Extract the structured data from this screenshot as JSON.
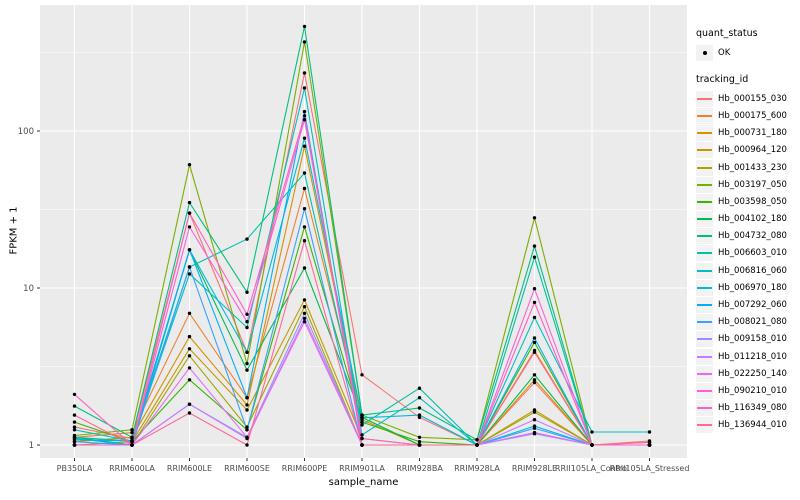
{
  "chart_data": {
    "type": "line",
    "title": "",
    "xlabel": "sample_name",
    "ylabel": "FPKM + 1",
    "y_scale": "log10",
    "y_ticks": [
      1,
      10,
      100
    ],
    "ylim": [
      0.93,
      700
    ],
    "grid": true,
    "legend_position": "right",
    "categories": [
      "PB350LA",
      "RRIM600LA",
      "RRIM600LE",
      "RRIM600SE",
      "RRIM600PE",
      "RRIM901LA",
      "RRIM928BA",
      "RRIM928LA",
      "RRIM928LE",
      "RRII105LA_Control",
      "RRII105LA_Stressed"
    ],
    "series": [
      {
        "name": "Hb_000155_030",
        "color": "#F8766D",
        "values": [
          1.3,
          1.1,
          30,
          3.9,
          234,
          2.8,
          1.5,
          1.0,
          2.5,
          1.0,
          1.06
        ]
      },
      {
        "name": "Hb_000175_600",
        "color": "#EA8331",
        "values": [
          1.12,
          1.2,
          6.9,
          2.0,
          43,
          1.5,
          1.0,
          1.0,
          4.0,
          1.0,
          1.0
        ]
      },
      {
        "name": "Hb_000731_180",
        "color": "#D89000",
        "values": [
          1.05,
          1.12,
          4.9,
          1.8,
          80,
          1.45,
          1.0,
          1.0,
          2.6,
          1.0,
          1.0
        ]
      },
      {
        "name": "Hb_000964_120",
        "color": "#C09B00",
        "values": [
          1.0,
          1.05,
          4.1,
          1.67,
          8.4,
          1.1,
          1.0,
          1.0,
          1.67,
          1.0,
          1.0
        ]
      },
      {
        "name": "Hb_001433_230",
        "color": "#A3A500",
        "values": [
          1.0,
          1.0,
          3.7,
          1.3,
          7.6,
          1.0,
          1.0,
          1.0,
          1.62,
          1.0,
          1.0
        ]
      },
      {
        "name": "Hb_003197_050",
        "color": "#7CAE00",
        "values": [
          1.15,
          1.25,
          61,
          3.3,
          369,
          1.55,
          1.12,
          1.08,
          28,
          1.0,
          1.0
        ]
      },
      {
        "name": "Hb_003598_050",
        "color": "#39B600",
        "values": [
          1.4,
          1.05,
          2.6,
          1.25,
          24.5,
          1.4,
          1.05,
          1.0,
          4.5,
          1.0,
          1.0
        ]
      },
      {
        "name": "Hb_004102_180",
        "color": "#00BB4E",
        "values": [
          1.12,
          1.0,
          17.5,
          3.0,
          13.4,
          1.5,
          1.0,
          1.0,
          2.8,
          1.0,
          1.0
        ]
      },
      {
        "name": "Hb_004732_080",
        "color": "#00BF7D",
        "values": [
          1.77,
          1.12,
          35,
          9.4,
          464,
          1.55,
          1.72,
          1.08,
          18.5,
          1.0,
          1.0
        ]
      },
      {
        "name": "Hb_006603_010",
        "color": "#00C0A7",
        "values": [
          1.12,
          1.06,
          13.6,
          20.5,
          54,
          1.34,
          2.3,
          1.0,
          15.7,
          1.0,
          1.0
        ]
      },
      {
        "name": "Hb_006816_060",
        "color": "#00BFC4",
        "values": [
          1.25,
          1.06,
          12.3,
          5.6,
          188,
          1.16,
          2.0,
          1.0,
          6.5,
          1.21,
          1.21
        ]
      },
      {
        "name": "Hb_006970_180",
        "color": "#00BADE",
        "values": [
          1.1,
          1.0,
          17.5,
          3.9,
          90,
          1.49,
          1.55,
          1.0,
          1.32,
          1.0,
          1.0
        ]
      },
      {
        "name": "Hb_007292_060",
        "color": "#00B0F6",
        "values": [
          1.08,
          1.06,
          17.5,
          2.0,
          133,
          1.0,
          1.0,
          1.0,
          4.8,
          1.0,
          1.0
        ]
      },
      {
        "name": "Hb_008021_080",
        "color": "#35A2FF",
        "values": [
          1.05,
          1.0,
          13.6,
          1.25,
          32,
          1.0,
          1.0,
          1.0,
          1.28,
          1.0,
          1.0
        ]
      },
      {
        "name": "Hb_009158_010",
        "color": "#9590FF",
        "values": [
          1.0,
          1.0,
          1.82,
          1.12,
          6.9,
          1.0,
          1.0,
          1.0,
          1.18,
          1.0,
          1.0
        ]
      },
      {
        "name": "Hb_011218_010",
        "color": "#C77CFF",
        "values": [
          1.0,
          1.0,
          1.82,
          1.1,
          6.4,
          1.0,
          1.0,
          1.0,
          1.45,
          1.0,
          1.0
        ]
      },
      {
        "name": "Hb_022250_140",
        "color": "#E76BF3",
        "values": [
          1.0,
          1.0,
          3.1,
          1.12,
          6.1,
          1.0,
          1.0,
          1.0,
          1.2,
          1.0,
          1.0
        ]
      },
      {
        "name": "Hb_090210_010",
        "color": "#FA62DB",
        "values": [
          1.0,
          1.0,
          24.5,
          6.1,
          118,
          1.1,
          1.0,
          1.0,
          9.9,
          1.0,
          1.0
        ]
      },
      {
        "name": "Hb_116349_080",
        "color": "#FF61C3",
        "values": [
          2.1,
          1.0,
          30,
          6.8,
          125,
          1.0,
          1.0,
          1.0,
          8.1,
          1.0,
          1.04
        ]
      },
      {
        "name": "Hb_136944_010",
        "color": "#FF6A98",
        "values": [
          1.55,
          1.0,
          1.6,
          1.0,
          20,
          1.0,
          1.0,
          1.0,
          3.9,
          1.0,
          1.04
        ]
      }
    ],
    "legend": {
      "quant_status_title": "quant_status",
      "quant_status_items": [
        {
          "label": "OK",
          "marker": "point",
          "color": "#000000"
        }
      ],
      "tracking_id_title": "tracking_id"
    },
    "colors": {
      "panel_bg": "#EBEBEB",
      "grid": "#FFFFFF",
      "point": "#000000",
      "axis_text": "#4D4D4D",
      "tick_mark": "#333333",
      "legend_key_bg": "#F2F2F2"
    }
  }
}
